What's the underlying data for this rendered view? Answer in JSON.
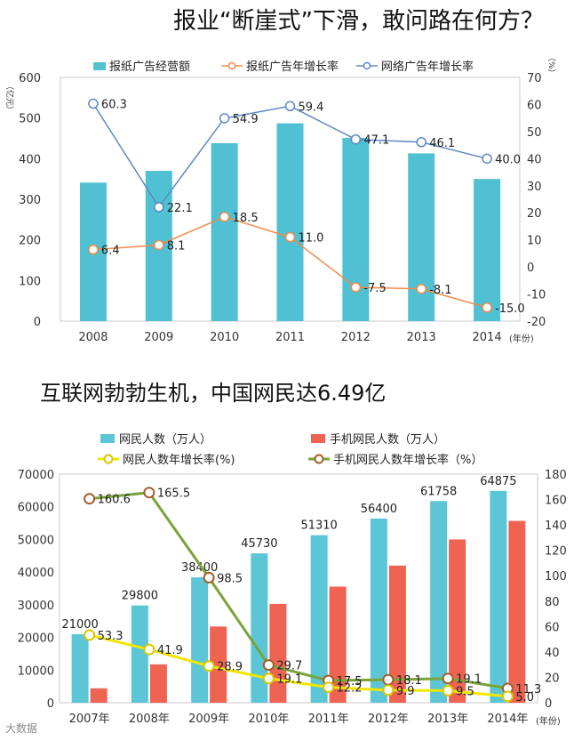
{
  "watermark": "大数据",
  "chart_data": [
    {
      "type": "bar+line",
      "title": "报业“断崖式”下滑，敢问路在何方？",
      "categories": [
        "2008",
        "2009",
        "2010",
        "2011",
        "2012",
        "2013",
        "2014"
      ],
      "x_unit": "(年份)",
      "y_left": {
        "label": "（亿元）",
        "range": [
          0,
          600
        ],
        "ticks": [
          "0",
          "100",
          "200",
          "300",
          "400",
          "500",
          "600"
        ]
      },
      "y_right": {
        "label": "（%）",
        "range": [
          -20,
          70
        ],
        "ticks": [
          "-20",
          "-10",
          "0",
          "10",
          "20",
          "30",
          "40",
          "50",
          "60",
          "70"
        ]
      },
      "legend": [
        "报纸广告经营额",
        "报纸广告年增长率",
        "网络广告年增长率"
      ],
      "series": [
        {
          "name": "报纸广告经营额",
          "kind": "bar",
          "axis": "left",
          "color": "#4fc1d2",
          "values": [
            341,
            370,
            438,
            487,
            451,
            413,
            350
          ]
        },
        {
          "name": "报纸广告年增长率",
          "kind": "line",
          "axis": "right",
          "color": "#f08a4b",
          "values": [
            6.4,
            8.1,
            18.5,
            11.0,
            -7.5,
            -8.1,
            -15.0
          ],
          "labels": [
            "6.4",
            "8.1",
            "18.5",
            "11.0",
            "-7.5",
            "-8.1",
            "-15.0"
          ]
        },
        {
          "name": "网络广告年增长率",
          "kind": "line",
          "axis": "right",
          "color": "#5b89c6",
          "values": [
            60.3,
            22.1,
            54.9,
            59.4,
            47.1,
            46.1,
            40.0
          ],
          "labels": [
            "60.3",
            "22.1",
            "54.9",
            "59.4",
            "47.1",
            "46.1",
            "40.0"
          ]
        }
      ]
    },
    {
      "type": "bar+line",
      "title": "互联网勃勃生机，中国网民达6.49亿",
      "categories": [
        "2007年",
        "2008年",
        "2009年",
        "2010年",
        "2011年",
        "2012年",
        "2013年",
        "2014年"
      ],
      "x_unit": "(年份)",
      "y_left": {
        "range": [
          0,
          70000
        ],
        "ticks": [
          "0",
          "10000",
          "20000",
          "30000",
          "40000",
          "50000",
          "60000",
          "70000"
        ]
      },
      "y_right": {
        "range": [
          0,
          180
        ],
        "ticks": [
          "0",
          "20",
          "40",
          "60",
          "80",
          "100",
          "120",
          "140",
          "160",
          "180"
        ]
      },
      "legend": [
        "网民人数（万人）",
        "手机网民人数（万人）",
        "网民人数年增长率(%)",
        "手机网民人数年增长率（%）"
      ],
      "series": [
        {
          "name": "网民人数（万人）",
          "kind": "bar",
          "axis": "left",
          "color": "#5cc6d6",
          "values": [
            21000,
            29800,
            38400,
            45730,
            51310,
            56400,
            61758,
            64875
          ],
          "labels": [
            "21000",
            "29800",
            "38400",
            "45730",
            "51310",
            "56400",
            "61758",
            "64875"
          ]
        },
        {
          "name": "手机网民人数（万人）",
          "kind": "bar",
          "axis": "left",
          "color": "#ee6352",
          "values": [
            4430,
            11760,
            23340,
            30270,
            35560,
            41997,
            50006,
            55678
          ]
        },
        {
          "name": "网民人数年增长率(%)",
          "kind": "line",
          "axis": "right",
          "color": "#f2e600",
          "values": [
            53.3,
            41.9,
            28.9,
            19.1,
            12.2,
            9.9,
            9.5,
            5.0
          ],
          "labels": [
            "53.3",
            "41.9",
            "28.9",
            "19.1",
            "12.2",
            "9.9",
            "9.5",
            "5.0"
          ]
        },
        {
          "name": "手机网民人数年增长率（%）",
          "kind": "line",
          "axis": "right",
          "color": "#7aa33a",
          "values": [
            160.6,
            165.5,
            98.5,
            29.7,
            17.5,
            18.1,
            19.1,
            11.3
          ],
          "labels": [
            "160.6",
            "165.5",
            "98.5",
            "29.7",
            "17.5",
            "18.1",
            "19.1",
            "11.3"
          ]
        }
      ]
    }
  ]
}
